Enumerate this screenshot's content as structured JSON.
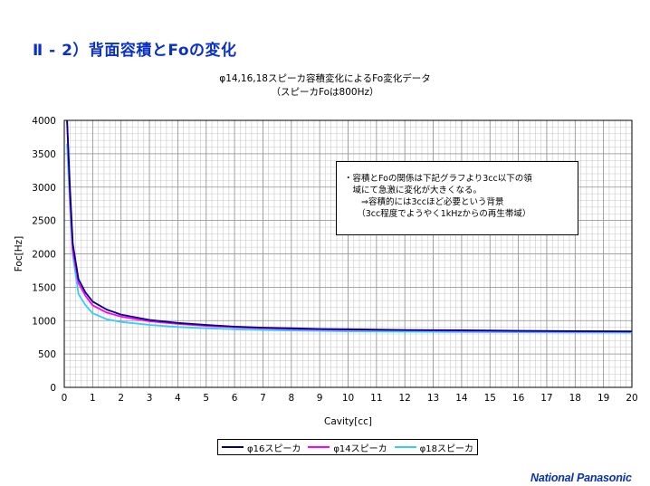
{
  "slide": {
    "title": "Ⅱ - 2）背面容積とFoの変化"
  },
  "colors": {
    "title": "#0a30c8",
    "logo": "#0a30b4"
  },
  "note": {
    "lines": [
      "・容積とFoの関係は下記グラフより3cc以下の領",
      "　域にて急激に変化が大きくなる。",
      "　　⇒容積的には3ccほど必要という背景",
      "　　（3cc程度でようやく1kHzからの再生帯域）"
    ]
  },
  "logo": {
    "text": "National Panasonic"
  },
  "chart_data": {
    "type": "line",
    "title": "φ14,16,18スピーカ容積変化によるFo変化データ",
    "subtitle": "（スピーカFoは800Hz）",
    "xlabel": "Cavity[cc]",
    "ylabel": "Foc[Hz]",
    "xlim": [
      0,
      20
    ],
    "ylim": [
      0,
      4000
    ],
    "x_ticks": [
      "0",
      "1",
      "2",
      "3",
      "4",
      "5",
      "6",
      "7",
      "8",
      "9",
      "10",
      "11",
      "12",
      "13",
      "14",
      "15",
      "16",
      "17",
      "18",
      "19",
      "20"
    ],
    "y_ticks": [
      "0",
      "500",
      "1000",
      "1500",
      "2000",
      "2500",
      "3000",
      "3500",
      "4000"
    ],
    "grid": true,
    "legend_position": "bottom",
    "x": [
      0.1,
      0.2,
      0.3,
      0.5,
      0.75,
      1,
      1.5,
      2,
      3,
      4,
      5,
      6,
      7,
      8,
      9,
      10,
      12,
      14,
      16,
      18,
      20
    ],
    "series": [
      {
        "name": "φ16スピーカ",
        "color": "#000080",
        "values": [
          4000,
          2980,
          2150,
          1620,
          1420,
          1285,
          1165,
          1090,
          1010,
          965,
          935,
          910,
          895,
          885,
          875,
          870,
          860,
          855,
          848,
          842,
          838
        ]
      },
      {
        "name": "φ14スピーカ",
        "color": "#ff00ff",
        "values": [
          4000,
          2850,
          2050,
          1560,
          1370,
          1230,
          1120,
          1060,
          990,
          950,
          920,
          900,
          885,
          875,
          868,
          862,
          855,
          848,
          842,
          838,
          835
        ]
      },
      {
        "name": "φ18スピーカ",
        "color": "#33ccff",
        "values": [
          3650,
          2700,
          1980,
          1400,
          1230,
          1110,
          1020,
          980,
          935,
          905,
          885,
          870,
          860,
          852,
          846,
          840,
          834,
          830,
          826,
          822,
          820
        ]
      }
    ]
  }
}
